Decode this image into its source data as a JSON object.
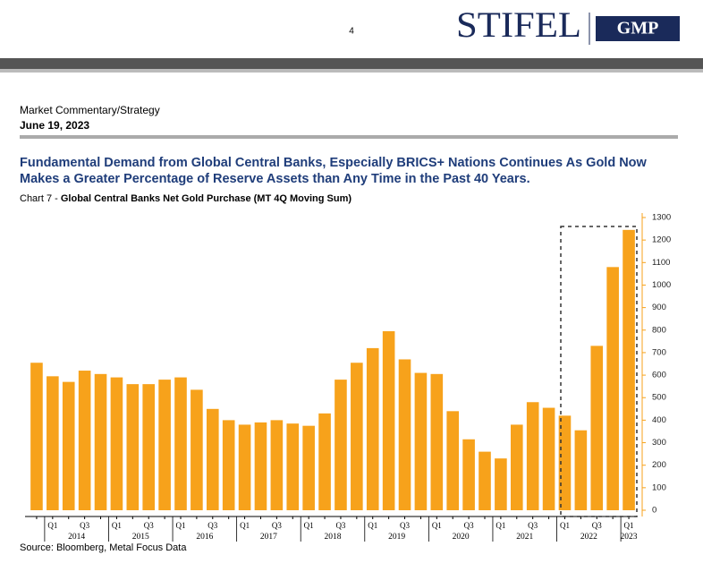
{
  "header": {
    "page_number": "4",
    "logo": "STIFEL",
    "logo_partner": "GMP"
  },
  "section": "Market Commentary/Strategy",
  "date": "June 19, 2023",
  "headline": [
    "Fundamental Demand from Global Central Banks, Especially BRICS+ Nations Continues As Gold Now",
    "Makes a Greater Percentage of Reserve Assets than Any Time in the Past 40 Years."
  ],
  "chart_data": {
    "type": "bar",
    "label": "Chart 7 - ",
    "title": "Global Central Banks Net Gold Purchase (MT 4Q Moving Sum)",
    "categories": [
      null,
      "Q1",
      null,
      "Q3",
      null,
      "Q1",
      null,
      "Q3",
      null,
      "Q1",
      null,
      "Q3",
      null,
      "Q1",
      null,
      "Q3",
      null,
      "Q1",
      null,
      "Q3",
      null,
      "Q1",
      null,
      "Q3",
      null,
      "Q1",
      null,
      "Q3",
      null,
      "Q1",
      null,
      "Q3",
      null,
      "Q1",
      null,
      "Q3",
      null,
      "Q1"
    ],
    "years": [
      "2014",
      "2015",
      "2016",
      "2017",
      "2018",
      "2019",
      "2020",
      "2021",
      "2022",
      "2023"
    ],
    "values": [
      655,
      595,
      570,
      620,
      605,
      590,
      560,
      560,
      580,
      590,
      535,
      450,
      400,
      380,
      390,
      400,
      385,
      375,
      430,
      580,
      655,
      720,
      795,
      670,
      610,
      605,
      440,
      315,
      260,
      230,
      380,
      480,
      455,
      420,
      355,
      730,
      1080,
      1245
    ],
    "color": "#f7a21b",
    "ylim": [
      0,
      1300
    ],
    "yticks": [
      0,
      100,
      200,
      300,
      400,
      500,
      600,
      700,
      800,
      900,
      1000,
      1100,
      1200,
      1300
    ],
    "y_axis_side": "right"
  },
  "source": "Source: Bloomberg, Metal Focus Data"
}
